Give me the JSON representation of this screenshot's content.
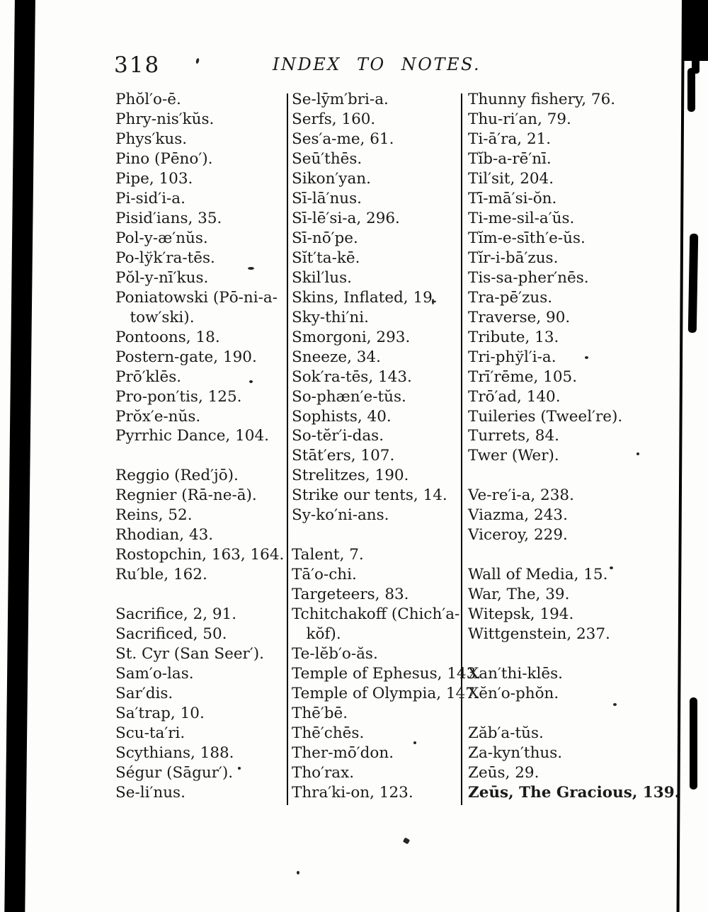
{
  "page": {
    "number": "318",
    "title": "INDEX TO NOTES."
  },
  "columns": [
    {
      "lines": [
        "Phŏl′o-ē.",
        "Phry-nis′kŭs.",
        "Phys′kus.",
        "Pino (Pēno′).",
        "Pipe, 103.",
        "Pi-sid′i-a.",
        "Pisid′ians, 35.",
        "Pol-y-æ′nŭs.",
        "Po-lўk′ra-tēs.",
        "Pŏl-y-nī′kus.",
        "Poniatowski (Pō-ni-a-",
        "   tow′ski).",
        "Pontoons, 18.",
        "Postern-gate, 190.",
        "Prō′klēs.",
        "Pro-pon′tis, 125.",
        "Prŏx′e-nŭs.",
        "Pyrrhic Dance, 104.",
        "",
        "Reggio (Red′jō).",
        "Regnier (Rā-ne-ā).",
        "Reins, 52.",
        "Rhodian, 43.",
        "Rostopchin, 163, 164.",
        "Ru′ble, 162.",
        "",
        "Sacrifice, 2, 91.",
        "Sacrificed, 50.",
        "St. Cyr (San Seer′).",
        "Sam′o-las.",
        "Sar′dis.",
        "Sa′trap, 10.",
        "Scu-ta′ri.",
        "Scythians, 188.",
        "Ségur (Sāgur′).",
        "Se-li′nus."
      ]
    },
    {
      "lines": [
        "Se-lȳm′bri-a.",
        "Serfs, 160.",
        "Ses′a-me, 61.",
        "Seū′thēs.",
        "Sikon′yan.",
        "Sī-lā′nus.",
        "Sī-lē′si-a, 296.",
        "Sī-nō′pe.",
        "Sĭt′ta-kē.",
        "Skil′lus.",
        "Skins, Inflated, 19.",
        "Sky-thi′ni.",
        "Smorgoni, 293.",
        "Sneeze, 34.",
        "Sok′ra-tēs, 143.",
        "So-phæn′e-tŭs.",
        "Sophists, 40.",
        "So-tĕr′i-das.",
        "Stāt′ers, 107.",
        "Strelitzes, 190.",
        "Strike our tents, 14.",
        "Sy-ko′ni-ans.",
        "",
        "Talent, 7.",
        "Tā′o-chi.",
        "Targeteers, 83.",
        "Tchitchakoff (Chich′a-",
        "   kŏf).",
        "Te-lĕb′o-ăs.",
        "Temple of Ephesus, 143.",
        "Temple of Olympia, 147.",
        "Thē′bē.",
        "Thē′chēs.",
        "Ther-mō′don.",
        "Tho′rax.",
        "Thra′ki-on, 123."
      ]
    },
    {
      "lines": [
        "Thunny fishery, 76.",
        "Thu-ri′an, 79.",
        "Ti-ā′ra, 21.",
        "Tĭb-a-rē′nī.",
        "Til′sit, 204.",
        "Tī-mā′si-ŏn.",
        "Ti-me-sil-a′ŭs.",
        "Tĭm-e-sīth′e-ŭs.",
        "Tĭr-i-bā′zus.",
        "Tis-sa-pher′nēs.",
        "Tra-pē′zus.",
        "Traverse, 90.",
        "Tribute, 13.",
        "Tri-phўl′i-a.",
        "Trī′rēme, 105.",
        "Trō′ad, 140.",
        "Tuileries (Tweel′re).",
        "Turrets, 84.",
        "Twer (Wer).",
        "",
        "Ve-re′i-a, 238.",
        "Viazma, 243.",
        "Viceroy, 229.",
        "",
        "Wall of Media, 15.",
        "War, The, 39.",
        "Witepsk, 194.",
        "Wittgenstein, 237.",
        "",
        "Xan′thi-klēs.",
        "Xĕn′o-phŏn.",
        "",
        "Zăb′a-tŭs.",
        "Za-kyn′thus.",
        "Zeūs, 29.",
        "Zeūs, The Gracious, 139."
      ]
    }
  ],
  "bold_line": "Zeūs, The Gracious, 139."
}
